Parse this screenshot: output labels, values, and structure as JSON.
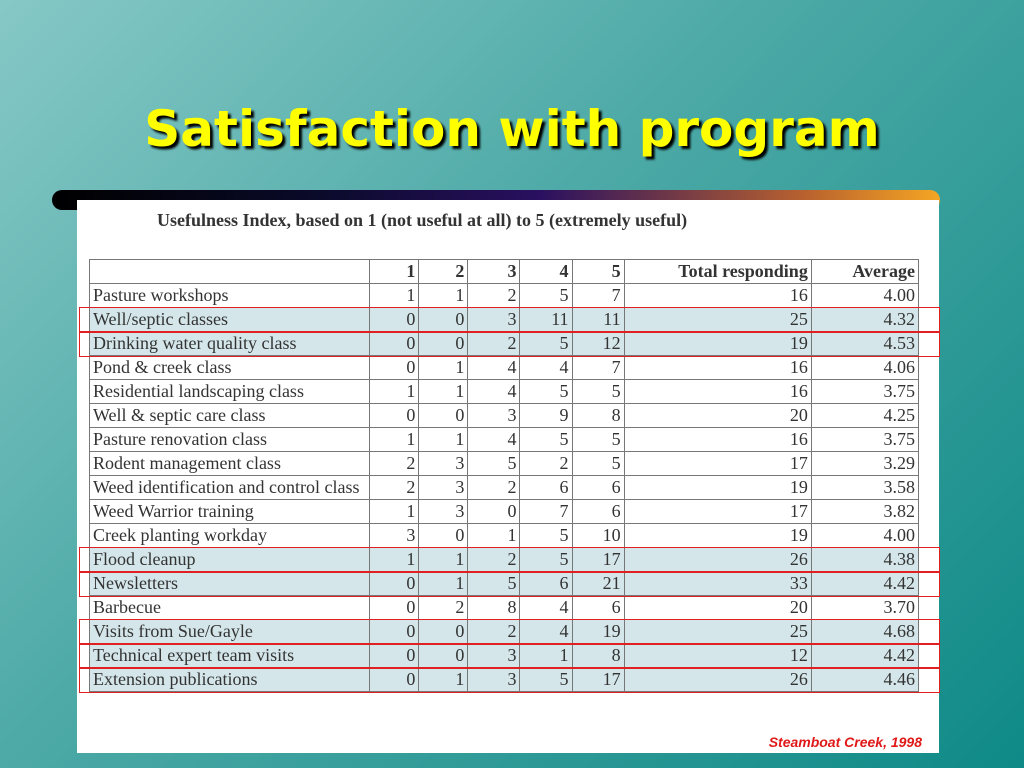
{
  "title": "Satisfaction with program",
  "subtitle": "Usefulness Index, based on 1 (not useful at all) to 5 (extremely useful)",
  "source": "Steamboat Creek, 1998",
  "colors": {
    "title": "#ffff00",
    "highlight_border": "#e02020",
    "source_text": "#e01818"
  },
  "table": {
    "headers": [
      "",
      "1",
      "2",
      "3",
      "4",
      "5",
      "Total responding",
      "Average"
    ],
    "rows": [
      {
        "label": "Pasture workshops",
        "c1": "1",
        "c2": "1",
        "c3": "2",
        "c4": "5",
        "c5": "7",
        "total": "16",
        "avg": "4.00",
        "highlight": false
      },
      {
        "label": "Well/septic classes",
        "c1": "0",
        "c2": "0",
        "c3": "3",
        "c4": "11",
        "c5": "11",
        "total": "25",
        "avg": "4.32",
        "highlight": true
      },
      {
        "label": "Drinking water quality class",
        "c1": "0",
        "c2": "0",
        "c3": "2",
        "c4": "5",
        "c5": "12",
        "total": "19",
        "avg": "4.53",
        "highlight": true
      },
      {
        "label": "Pond & creek class",
        "c1": "0",
        "c2": "1",
        "c3": "4",
        "c4": "4",
        "c5": "7",
        "total": "16",
        "avg": "4.06",
        "highlight": false
      },
      {
        "label": "Residential landscaping class",
        "c1": "1",
        "c2": "1",
        "c3": "4",
        "c4": "5",
        "c5": "5",
        "total": "16",
        "avg": "3.75",
        "highlight": false
      },
      {
        "label": "Well & septic care class",
        "c1": "0",
        "c2": "0",
        "c3": "3",
        "c4": "9",
        "c5": "8",
        "total": "20",
        "avg": "4.25",
        "highlight": false
      },
      {
        "label": "Pasture renovation class",
        "c1": "1",
        "c2": "1",
        "c3": "4",
        "c4": "5",
        "c5": "5",
        "total": "16",
        "avg": "3.75",
        "highlight": false
      },
      {
        "label": "Rodent management class",
        "c1": "2",
        "c2": "3",
        "c3": "5",
        "c4": "2",
        "c5": "5",
        "total": "17",
        "avg": "3.29",
        "highlight": false
      },
      {
        "label": "Weed identification and control class",
        "c1": "2",
        "c2": "3",
        "c3": "2",
        "c4": "6",
        "c5": "6",
        "total": "19",
        "avg": "3.58",
        "highlight": false
      },
      {
        "label": "Weed Warrior training",
        "c1": "1",
        "c2": "3",
        "c3": "0",
        "c4": "7",
        "c5": "6",
        "total": "17",
        "avg": "3.82",
        "highlight": false
      },
      {
        "label": "Creek planting workday",
        "c1": "3",
        "c2": "0",
        "c3": "1",
        "c4": "5",
        "c5": "10",
        "total": "19",
        "avg": "4.00",
        "highlight": false
      },
      {
        "label": "Flood cleanup",
        "c1": "1",
        "c2": "1",
        "c3": "2",
        "c4": "5",
        "c5": "17",
        "total": "26",
        "avg": "4.38",
        "highlight": true
      },
      {
        "label": "Newsletters",
        "c1": "0",
        "c2": "1",
        "c3": "5",
        "c4": "6",
        "c5": "21",
        "total": "33",
        "avg": "4.42",
        "highlight": true
      },
      {
        "label": "Barbecue",
        "c1": "0",
        "c2": "2",
        "c3": "8",
        "c4": "4",
        "c5": "6",
        "total": "20",
        "avg": "3.70",
        "highlight": false
      },
      {
        "label": "Visits from Sue/Gayle",
        "c1": "0",
        "c2": "0",
        "c3": "2",
        "c4": "4",
        "c5": "19",
        "total": "25",
        "avg": "4.68",
        "highlight": true
      },
      {
        "label": "Technical expert team visits",
        "c1": "0",
        "c2": "0",
        "c3": "3",
        "c4": "1",
        "c5": "8",
        "total": "12",
        "avg": "4.42",
        "highlight": true
      },
      {
        "label": "Extension publications",
        "c1": "0",
        "c2": "1",
        "c3": "3",
        "c4": "5",
        "c5": "17",
        "total": "26",
        "avg": "4.46",
        "highlight": true
      }
    ]
  }
}
